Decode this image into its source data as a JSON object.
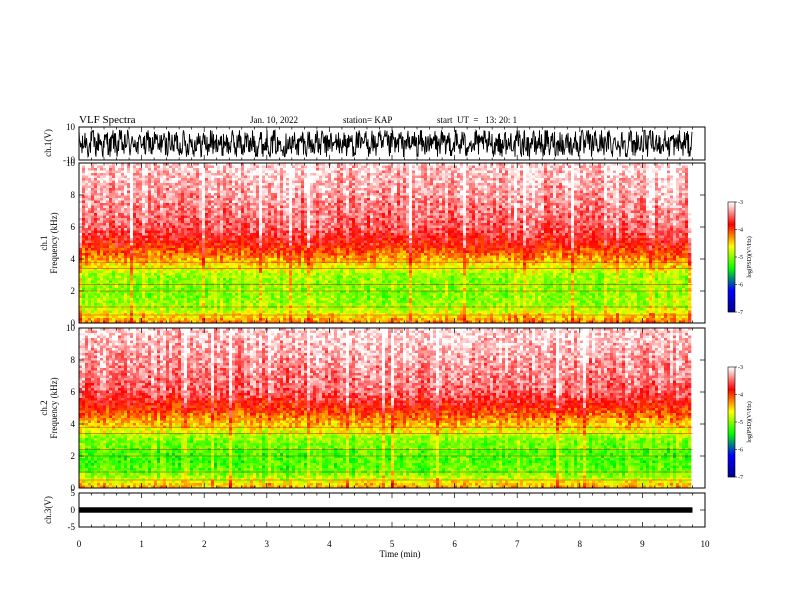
{
  "header": {
    "title": "VLF Spectra",
    "date": "Jan. 10, 2022",
    "station": "station= KAP",
    "start": "start  UT  =   13: 20: 1"
  },
  "colors": {
    "cmap": [
      "#00008f",
      "#0000ff",
      "#00ff00",
      "#ffff00",
      "#ff0000",
      "#ffffff"
    ],
    "waveform": "#000000"
  },
  "chart_data": [
    {
      "type": "line",
      "title": "",
      "ylabel": "ch.1(V)",
      "xlim": [
        0,
        10
      ],
      "ylim": [
        -10,
        10
      ],
      "yticks": [
        "10",
        "-10"
      ],
      "series": [
        {
          "x_range": [
            0,
            9.8
          ],
          "amplitude_range": [
            -8,
            8
          ]
        }
      ]
    },
    {
      "type": "heatmap",
      "ylabel": "ch.1\nFrequency (kHz)",
      "ylabel_lines": [
        "ch.1",
        "Frequency (kHz)"
      ],
      "xlim": [
        0,
        10
      ],
      "ylim": [
        0,
        10
      ],
      "yticks": [
        "0",
        "2",
        "4",
        "6",
        "8",
        "10"
      ],
      "data_x_range": [
        0,
        9.8
      ],
      "colorbar": {
        "label": "log(PSD)(V²/Hz)",
        "range": [
          -7,
          -3
        ],
        "ticks": [
          "-3",
          "-4",
          "-5",
          "-6",
          "-7"
        ]
      },
      "spectral_profile": [
        {
          "freq_khz": 0,
          "log_psd": -4.2
        },
        {
          "freq_khz": 1,
          "log_psd": -4.9
        },
        {
          "freq_khz": 2,
          "log_psd": -5.0
        },
        {
          "freq_khz": 3,
          "log_psd": -4.9
        },
        {
          "freq_khz": 4,
          "log_psd": -4.3
        },
        {
          "freq_khz": 5,
          "log_psd": -3.8
        },
        {
          "freq_khz": 6,
          "log_psd": -3.5
        },
        {
          "freq_khz": 8,
          "log_psd": -3.3
        },
        {
          "freq_khz": 10,
          "log_psd": -3.1
        }
      ]
    },
    {
      "type": "heatmap",
      "ylabel": "ch.2\nFrequency (kHz)",
      "ylabel_lines": [
        "ch.2",
        "Frequency (kHz)"
      ],
      "xlim": [
        0,
        10
      ],
      "ylim": [
        0,
        10
      ],
      "yticks": [
        "0",
        "2",
        "4",
        "6",
        "8",
        "10"
      ],
      "data_x_range": [
        0,
        9.8
      ],
      "colorbar": {
        "label": "log(PSD)(V²/Hz)",
        "range": [
          -7,
          -3
        ],
        "ticks": [
          "-3",
          "-4",
          "-5",
          "-6",
          "-7"
        ]
      },
      "spectral_profile": [
        {
          "freq_khz": 0,
          "log_psd": -4.3
        },
        {
          "freq_khz": 1,
          "log_psd": -5.1
        },
        {
          "freq_khz": 2,
          "log_psd": -5.2
        },
        {
          "freq_khz": 3,
          "log_psd": -5.0
        },
        {
          "freq_khz": 4,
          "log_psd": -4.4
        },
        {
          "freq_khz": 5,
          "log_psd": -3.9
        },
        {
          "freq_khz": 6,
          "log_psd": -3.5
        },
        {
          "freq_khz": 8,
          "log_psd": -3.3
        },
        {
          "freq_khz": 10,
          "log_psd": -3.1
        }
      ]
    },
    {
      "type": "line",
      "ylabel": "ch.3(V)",
      "xlim": [
        0,
        10
      ],
      "ylim": [
        -5,
        5
      ],
      "yticks": [
        "5",
        "0",
        "-5"
      ],
      "series": [
        {
          "x_range": [
            0,
            9.8
          ],
          "amplitude_range": [
            -0.8,
            0.8
          ]
        }
      ]
    }
  ],
  "xaxis": {
    "label": "Time (min)",
    "ticks": [
      "0",
      "1",
      "2",
      "3",
      "4",
      "5",
      "6",
      "7",
      "8",
      "9",
      "10"
    ],
    "range": [
      0,
      10
    ]
  }
}
